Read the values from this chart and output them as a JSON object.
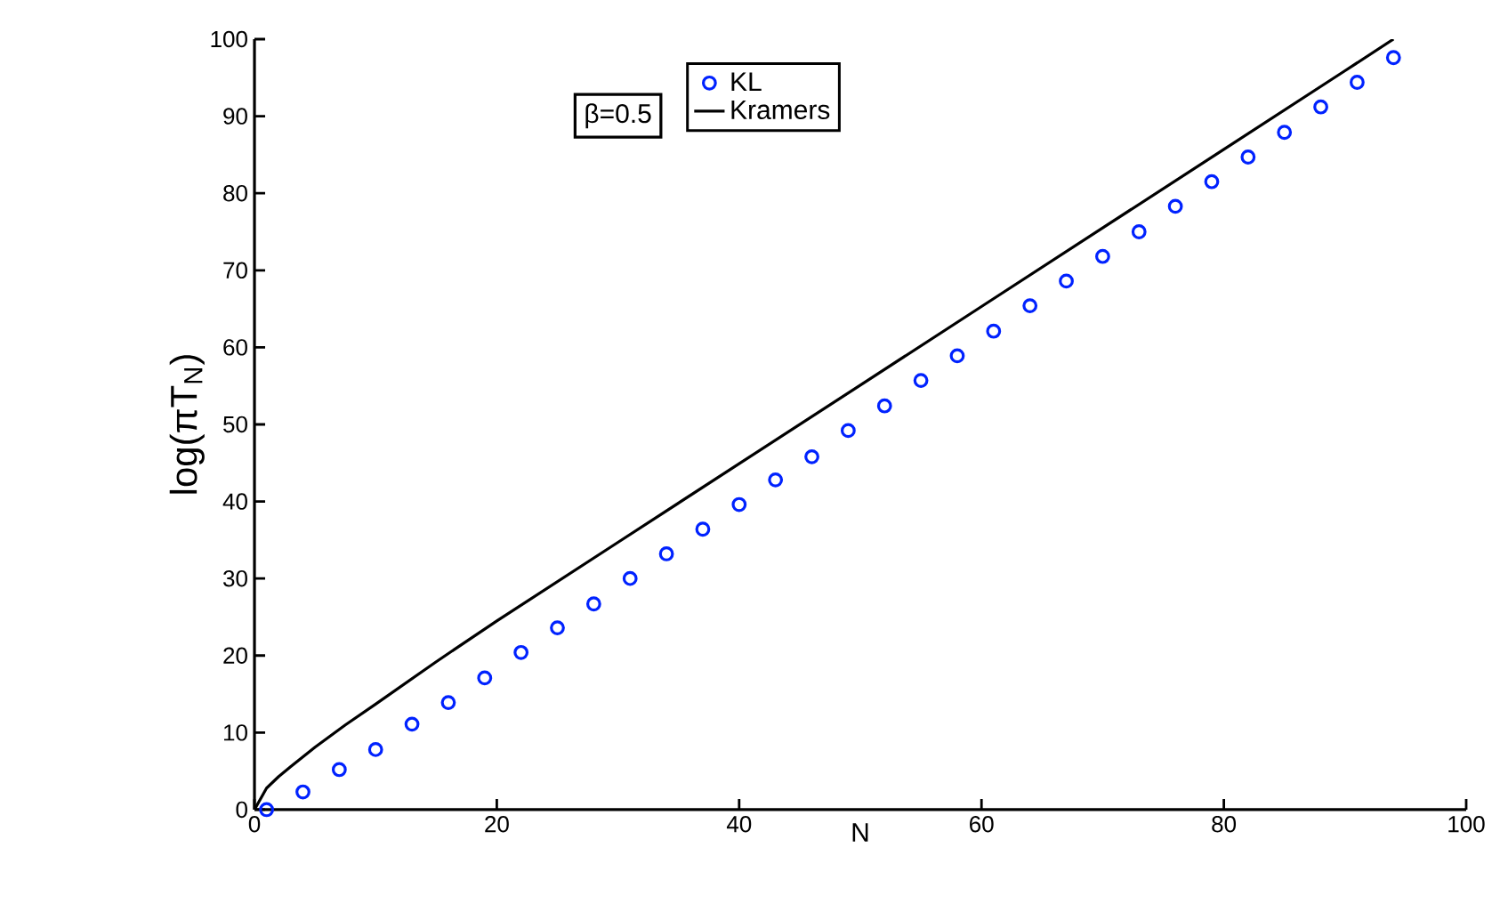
{
  "chart_data": {
    "type": "scatter",
    "xlabel": "N",
    "ylabel": "log(πT$_{N}$)",
    "xlim": [
      0,
      100
    ],
    "ylim": [
      0,
      100
    ],
    "xticks": [
      0,
      20,
      40,
      60,
      80,
      100
    ],
    "yticks": [
      0,
      10,
      20,
      30,
      40,
      50,
      60,
      70,
      80,
      90,
      100
    ],
    "annotations": [
      "β=0.5"
    ],
    "legend": "top",
    "grid": false,
    "series": [
      {
        "name": "KL",
        "marker": "circle",
        "color": "#0022ff",
        "x": [
          1,
          4,
          7,
          10,
          13,
          16,
          19,
          22,
          25,
          28,
          31,
          34,
          37,
          40,
          43,
          46,
          49,
          52,
          55,
          58,
          61,
          64,
          67,
          70,
          73,
          76,
          79,
          82,
          85,
          88,
          91,
          94
        ],
        "values": [
          0,
          2.3,
          5.2,
          7.8,
          11.1,
          13.9,
          17.1,
          20.4,
          23.6,
          26.7,
          30,
          33.2,
          36.4,
          39.6,
          42.8,
          45.8,
          49.2,
          52.4,
          55.7,
          58.9,
          62.1,
          65.4,
          68.6,
          71.8,
          75,
          78.3,
          81.5,
          84.7,
          87.9,
          91.2,
          94.4,
          97.6
        ]
      },
      {
        "name": "Kramers",
        "type": "line",
        "marker": "none",
        "line_style": "solid",
        "color": "#000000",
        "x": [
          0,
          1,
          2,
          3,
          5,
          7.5,
          10,
          15,
          20,
          30,
          40,
          50,
          60,
          70,
          80,
          90,
          94
        ],
        "values": [
          0,
          2.8,
          4.3,
          5.6,
          8.1,
          11,
          13.7,
          19.2,
          24.5,
          34.7,
          44.9,
          55.1,
          65.3,
          75.5,
          85.7,
          95.9,
          100
        ]
      }
    ]
  }
}
